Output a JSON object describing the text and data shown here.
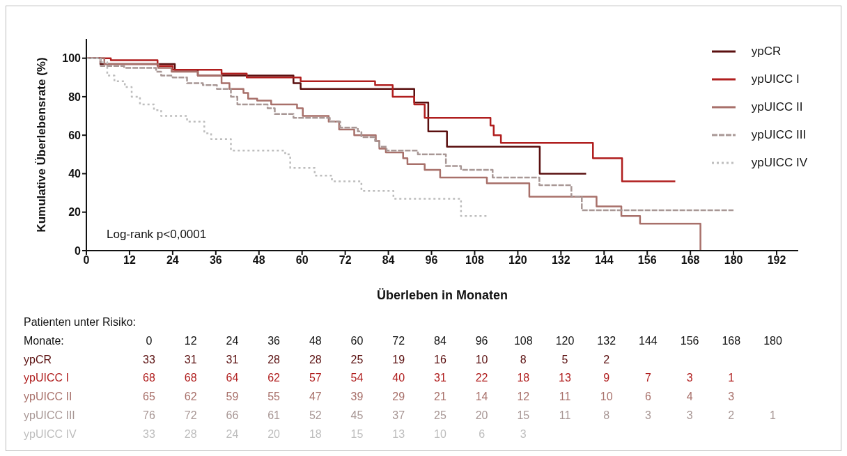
{
  "chart_data": {
    "type": "step",
    "xlabel": "Überleben in Monaten",
    "ylabel": "Kumulative Überlebensrate (%)",
    "xlim": [
      0,
      198
    ],
    "xticks": [
      0,
      12,
      24,
      36,
      48,
      60,
      72,
      84,
      96,
      108,
      120,
      132,
      144,
      156,
      168,
      180,
      192
    ],
    "ylim": [
      0,
      110
    ],
    "yticks": [
      0,
      20,
      40,
      60,
      80,
      100
    ],
    "grid": false,
    "legend": "top right",
    "marker": "none",
    "series": [
      {
        "name": "ypCR",
        "color": "#5a0f0f",
        "line_style": "solid",
        "x": [
          0,
          3.9,
          24.6,
          31,
          57.6,
          59.6,
          91.2,
          95.1,
          100.3,
          126.1,
          139
        ],
        "values": [
          100,
          97,
          94,
          91,
          87,
          84,
          77,
          62,
          54,
          40,
          40
        ]
      },
      {
        "name": "ypUICC I",
        "color": "#b01e1e",
        "line_style": "solid",
        "x": [
          0,
          6.8,
          19.8,
          24,
          37.6,
          44.6,
          59.6,
          80.3,
          85.2,
          91.2,
          94.1,
          112.4,
          113.3,
          115.3,
          140.9,
          149,
          163.8
        ],
        "values": [
          100,
          99,
          96,
          94,
          92,
          90,
          88,
          86,
          80,
          76,
          69,
          65,
          60,
          56,
          48,
          36,
          36
        ]
      },
      {
        "name": "ypUICC II",
        "color": "#a8706a",
        "line_style": "solid",
        "x": [
          0,
          5,
          20,
          23.7,
          31,
          37.6,
          39.8,
          43.7,
          45,
          47.5,
          51.4,
          58.6,
          60.2,
          67.4,
          70.3,
          74.5,
          80.5,
          81.5,
          83.3,
          88.1,
          89.3,
          94.1,
          98.4,
          111.4,
          123.2,
          141.9,
          148.8,
          154,
          170.8
        ],
        "values": [
          100,
          97,
          95,
          93,
          91,
          87,
          84,
          82,
          79,
          78,
          76,
          74,
          70,
          67,
          63,
          60,
          57,
          53,
          51,
          48,
          45,
          42,
          38,
          35,
          28,
          23,
          18,
          14,
          0
        ]
      },
      {
        "name": "ypUICC III",
        "color": "#a89795",
        "line_style": "dashed",
        "x": [
          0,
          4,
          10.5,
          19.4,
          20.8,
          24,
          28,
          32.4,
          36.3,
          40.2,
          42,
          50.4,
          52.4,
          57.6,
          67.7,
          70.6,
          75.5,
          76.5,
          80.3,
          81.5,
          83.5,
          92.2,
          100,
          104.2,
          113,
          126,
          134.9,
          137.8,
          180
        ],
        "values": [
          100,
          96,
          95,
          93,
          91,
          90,
          87,
          86,
          84,
          80,
          76,
          74,
          71,
          69,
          67,
          64,
          62,
          59,
          57,
          54,
          52,
          50,
          44,
          42,
          38,
          34,
          28,
          21,
          21
        ]
      },
      {
        "name": "ypUICC IV",
        "color": "#bdbdbd",
        "line_style": "dotted",
        "x": [
          0,
          3.9,
          5.8,
          7.8,
          10.7,
          12.6,
          14.9,
          18.8,
          20.8,
          28,
          32.8,
          34.7,
          40.2,
          55.3,
          56.7,
          63.5,
          68.3,
          76.5,
          85.4,
          104.2,
          111.4
        ],
        "values": [
          100,
          98,
          91,
          88,
          85,
          80,
          76,
          73,
          70,
          67,
          61,
          58,
          52,
          50,
          43,
          39,
          36,
          31,
          27,
          18,
          18
        ]
      }
    ],
    "annotations": [
      "Log-rank p<0,0001",
      "Patienten unter Risiko:",
      "Monate:\t0\t12\t24\t36\t48\t60\t72\t84\t96\t108\t120\t132\t144\t156\t168\t180",
      "ypCR\t33\t31\t31\t28\t28\t25\t19\t16\t10\t8\t5\t2",
      "ypUICC I\t68\t68\t64\t62\t57\t54\t40\t31\t22\t18\t13\t9\t7\t3\t1",
      "ypUICC II\t65\t62\t59\t55\t47\t39\t29\t21\t14\t12\t11\t10\t6\t4\t3",
      "ypUICC III\t76\t72\t66\t61\t52\t45\t37\t25\t20\t15\t11\t8\t3\t3\t2\t1",
      "ypUICC IV\t33\t28\t24\t20\t18\t15\t13\t10\t6\t3"
    ]
  }
}
